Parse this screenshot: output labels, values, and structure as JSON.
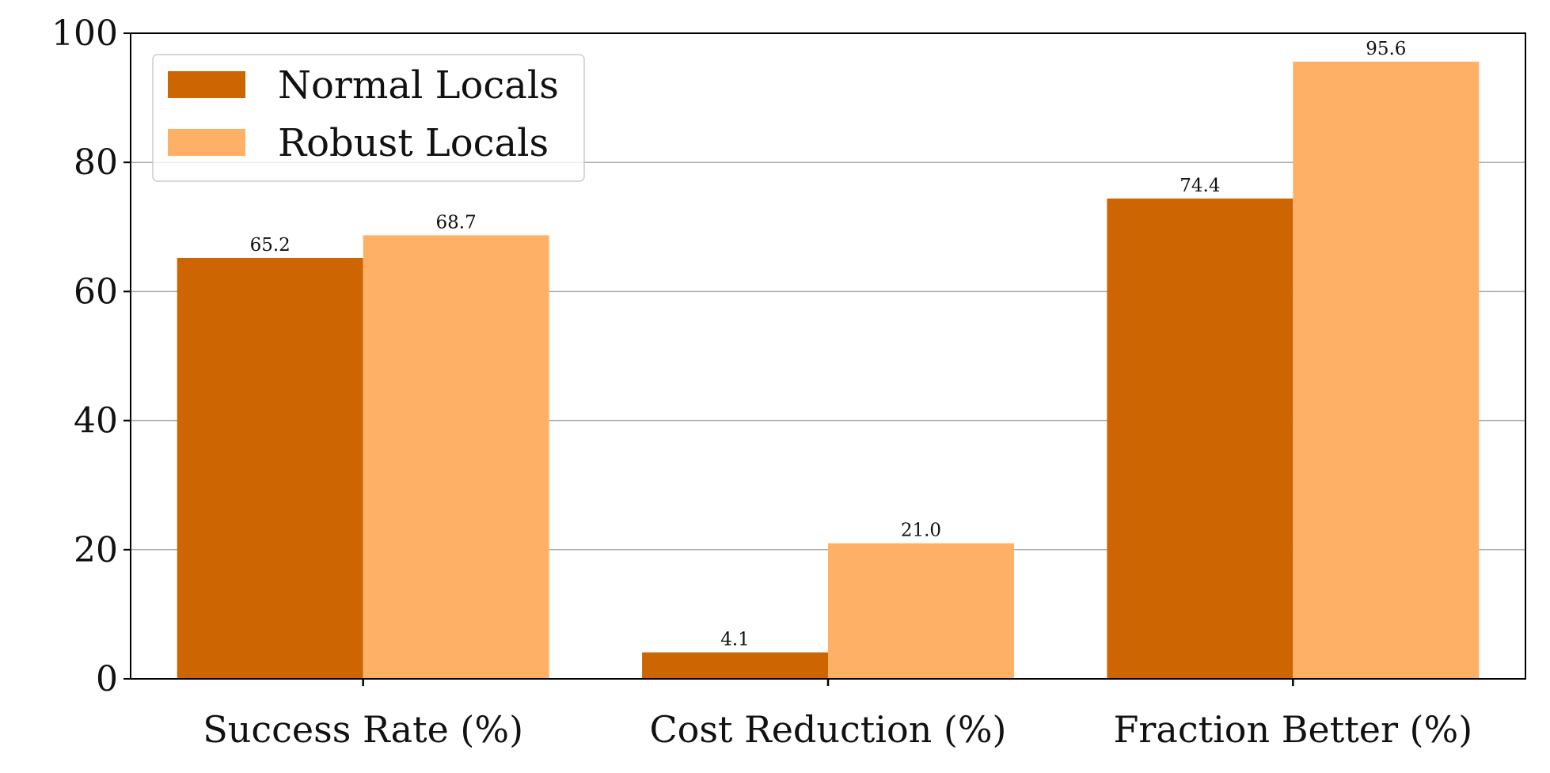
{
  "chart_data": {
    "type": "bar",
    "categories": [
      "Success Rate (%)",
      "Cost Reduction (%)",
      "Fraction Better (%)"
    ],
    "series": [
      {
        "name": "Normal Locals",
        "values": [
          65.2,
          4.1,
          74.4
        ],
        "color": "#cc6502"
      },
      {
        "name": "Robust Locals",
        "values": [
          68.7,
          21.0,
          95.6
        ],
        "color": "#ffb067"
      }
    ],
    "data_labels": [
      [
        "65.2",
        "4.1",
        "74.4"
      ],
      [
        "68.7",
        "21.0",
        "95.6"
      ]
    ],
    "title": "",
    "xlabel": "",
    "ylabel": "",
    "ylim": [
      0,
      100
    ],
    "yticks": [
      "0",
      "20",
      "40",
      "60",
      "80",
      "100"
    ],
    "grid": "horizontal",
    "legend_position": "upper-left",
    "colors": {
      "grid": "#b0b0b0",
      "axes": "#000000"
    }
  }
}
